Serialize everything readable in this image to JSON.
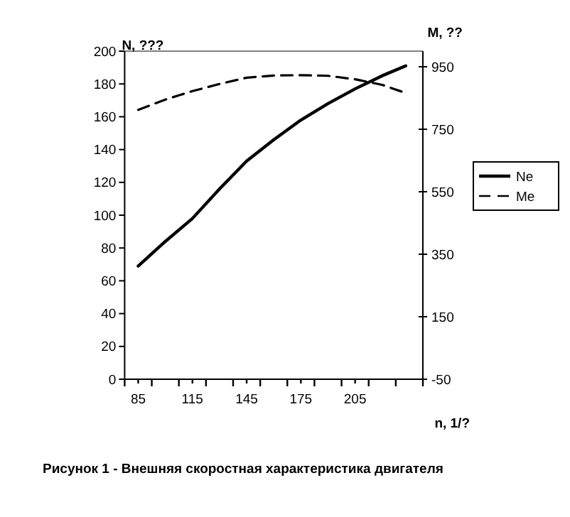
{
  "chart_data": {
    "type": "line",
    "xlabel": "n, 1/?",
    "ylabel": "N, ???",
    "y2label": "M, ??",
    "annotations": [
      "Рисунок 1 - Внешняя скоростная характеристика двигателя"
    ],
    "xlim": [
      77.5,
      242.5
    ],
    "xticks": [
      {
        "value": 77.5,
        "label": null
      },
      85,
      {
        "value": 92.5,
        "label": null
      },
      {
        "value": 107.5,
        "label": null
      },
      115,
      {
        "value": 122.5,
        "label": null
      },
      {
        "value": 137.5,
        "label": null
      },
      145,
      {
        "value": 152.5,
        "label": null
      },
      {
        "value": 167.5,
        "label": null
      },
      175,
      {
        "value": 182.5,
        "label": null
      },
      {
        "value": 197.5,
        "label": null
      },
      205,
      {
        "value": 212.5,
        "label": null
      },
      {
        "value": 227.5,
        "label": null
      },
      {
        "value": 242.5,
        "label": null
      }
    ],
    "ylim": [
      0,
      200
    ],
    "yticks": [
      0,
      20,
      40,
      60,
      80,
      100,
      120,
      140,
      160,
      180,
      200
    ],
    "y2lim": [
      -50,
      1000
    ],
    "y2ticks": [
      -50,
      150,
      350,
      550,
      750,
      950
    ],
    "grid": false,
    "legend": "right",
    "marker": "none",
    "x": [
      85,
      100,
      115,
      130,
      145,
      160,
      175,
      190,
      205,
      220,
      233
    ],
    "series": [
      {
        "name": "Ne",
        "color": "#000000",
        "line_style": "solid",
        "values": [
          69,
          84,
          98,
          116,
          133,
          146,
          158,
          168,
          177,
          185,
          191
        ]
      },
      {
        "name": "Me",
        "color": "#000000",
        "line_style": "dashed",
        "axis": "y2",
        "values": [
          812,
          845,
          872,
          895,
          915,
          922,
          923,
          921,
          910,
          892,
          866
        ]
      }
    ]
  }
}
